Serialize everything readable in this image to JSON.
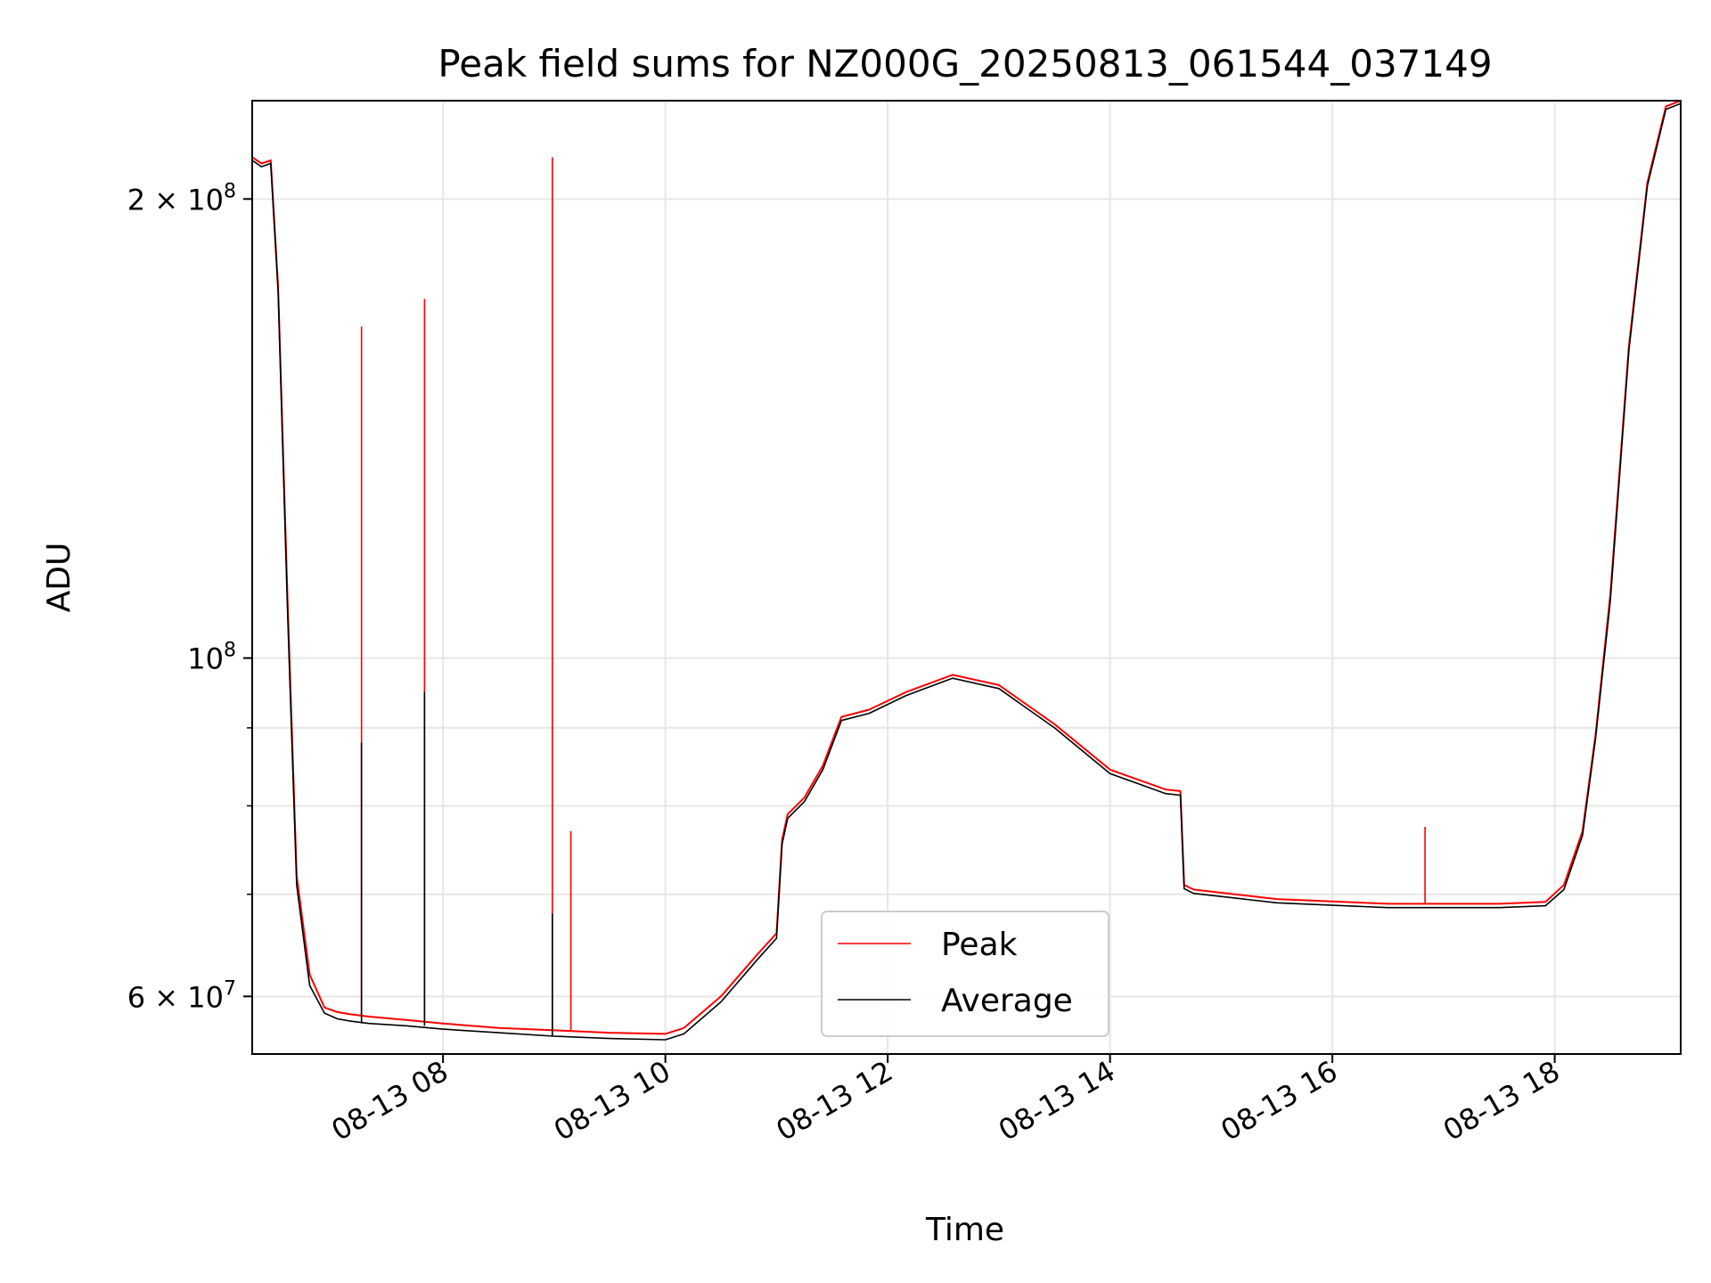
{
  "chart_data": {
    "type": "line",
    "title": "Peak field sums for NZ000G_20250813_061544_037149",
    "xlabel": "Time",
    "ylabel": "ADU",
    "xlim": [
      "08-13 06:17",
      "08-13 19:08"
    ],
    "ylim": [
      55000000,
      232000000
    ],
    "y_scale": "log",
    "grid": true,
    "legend_position": "lower-center",
    "x_tick_labels": [
      "08-13 08",
      "08-13 10",
      "08-13 12",
      "08-13 14",
      "08-13 16",
      "08-13 18"
    ],
    "x_ticks": [
      "08-13 08:00",
      "08-13 10:00",
      "08-13 12:00",
      "08-13 14:00",
      "08-13 16:00",
      "08-13 18:00"
    ],
    "y_ticks": [
      {
        "value": 60000000,
        "base": "6",
        "mult": " × 10",
        "exp": "7"
      },
      {
        "value": 100000000,
        "base": "10",
        "mult": "",
        "exp": "8"
      },
      {
        "value": 200000000,
        "base": "2",
        "mult": " × 10",
        "exp": "8"
      }
    ],
    "y_minor_ticks": [
      70000000,
      80000000,
      90000000
    ],
    "series": [
      {
        "name": "Peak",
        "color": "#ff0000",
        "x": [
          "08-13 06:17",
          "08-13 06:22",
          "08-13 06:27",
          "08-13 06:31",
          "08-13 06:36",
          "08-13 06:41",
          "08-13 06:48",
          "08-13 06:56",
          "08-13 07:03",
          "08-13 07:10",
          "08-13 07:20",
          "08-13 07:40",
          "08-13 08:00",
          "08-13 08:30",
          "08-13 09:00",
          "08-13 09:30",
          "08-13 10:00",
          "08-13 10:10",
          "08-13 10:30",
          "08-13 10:50",
          "08-13 11:00",
          "08-13 11:03",
          "08-13 11:06",
          "08-13 11:15",
          "08-13 11:25",
          "08-13 11:35",
          "08-13 11:50",
          "08-13 12:10",
          "08-13 12:35",
          "08-13 13:00",
          "08-13 13:30",
          "08-13 14:00",
          "08-13 14:30",
          "08-13 14:38",
          "08-13 14:40",
          "08-13 14:45",
          "08-13 15:30",
          "08-13 16:30",
          "08-13 17:30",
          "08-13 17:55",
          "08-13 18:05",
          "08-13 18:15",
          "08-13 18:22",
          "08-13 18:30",
          "08-13 18:40",
          "08-13 18:50",
          "08-13 19:00",
          "08-13 19:08"
        ],
        "y": [
          213000000,
          211000000,
          212000000,
          175000000,
          110000000,
          72000000,
          62000000,
          59000000,
          58600000,
          58400000,
          58200000,
          57900000,
          57600000,
          57200000,
          57000000,
          56800000,
          56700000,
          57200000,
          60000000,
          64000000,
          66000000,
          76000000,
          79000000,
          81000000,
          85000000,
          91500000,
          92500000,
          95000000,
          97500000,
          96000000,
          90500000,
          84500000,
          82000000,
          81800000,
          71000000,
          70500000,
          69500000,
          69000000,
          69000000,
          69200000,
          71000000,
          77000000,
          89000000,
          110000000,
          160000000,
          205000000,
          230000000,
          232000000
        ]
      },
      {
        "name": "Average",
        "color": "#000000",
        "x": [
          "08-13 06:17",
          "08-13 06:22",
          "08-13 06:27",
          "08-13 06:31",
          "08-13 06:36",
          "08-13 06:41",
          "08-13 06:48",
          "08-13 06:56",
          "08-13 07:03",
          "08-13 07:10",
          "08-13 07:20",
          "08-13 07:40",
          "08-13 08:00",
          "08-13 08:30",
          "08-13 09:00",
          "08-13 09:30",
          "08-13 10:00",
          "08-13 10:10",
          "08-13 10:30",
          "08-13 10:50",
          "08-13 11:00",
          "08-13 11:03",
          "08-13 11:06",
          "08-13 11:15",
          "08-13 11:25",
          "08-13 11:35",
          "08-13 11:50",
          "08-13 12:10",
          "08-13 12:35",
          "08-13 13:00",
          "08-13 13:30",
          "08-13 14:00",
          "08-13 14:30",
          "08-13 14:38",
          "08-13 14:40",
          "08-13 14:45",
          "08-13 15:30",
          "08-13 16:30",
          "08-13 17:30",
          "08-13 17:55",
          "08-13 18:05",
          "08-13 18:15",
          "08-13 18:22",
          "08-13 18:30",
          "08-13 18:40",
          "08-13 18:50",
          "08-13 19:00",
          "08-13 19:08"
        ],
        "y": [
          212000000,
          210000000,
          211000000,
          174000000,
          108000000,
          71000000,
          61000000,
          58500000,
          58000000,
          57800000,
          57600000,
          57400000,
          57100000,
          56800000,
          56500000,
          56300000,
          56200000,
          56700000,
          59500000,
          63500000,
          65500000,
          75500000,
          78500000,
          80500000,
          84500000,
          91000000,
          92000000,
          94500000,
          97000000,
          95500000,
          90000000,
          84000000,
          81500000,
          81300000,
          70600000,
          70100000,
          69100000,
          68600000,
          68600000,
          68800000,
          70500000,
          76500000,
          88500000,
          109000000,
          159000000,
          204000000,
          229000000,
          231000000
        ]
      }
    ],
    "spikes": [
      {
        "series": "Peak",
        "x": "08-13 07:16",
        "y": 165000000
      },
      {
        "series": "Average",
        "x": "08-13 07:16",
        "y": 88000000
      },
      {
        "series": "Peak",
        "x": "08-13 07:50",
        "y": 172000000
      },
      {
        "series": "Average",
        "x": "08-13 07:50",
        "y": 95000000
      },
      {
        "series": "Peak",
        "x": "08-13 08:59",
        "y": 213000000
      },
      {
        "series": "Average",
        "x": "08-13 08:59",
        "y": 68000000
      },
      {
        "series": "Peak",
        "x": "08-13 09:09",
        "y": 77000000
      },
      {
        "series": "Peak",
        "x": "08-13 16:50",
        "y": 77500000
      }
    ]
  }
}
